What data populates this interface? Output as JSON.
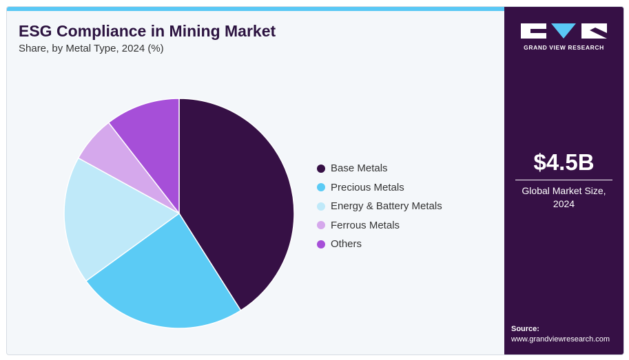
{
  "header": {
    "title": "ESG Compliance in Mining Market",
    "subtitle": "Share, by Metal Type, 2024 (%)"
  },
  "brand": {
    "name": "GRAND VIEW RESEARCH",
    "logo_icon": "gvr-logo-icon"
  },
  "stat": {
    "value": "$4.5B",
    "label": "Global Market Size, 2024"
  },
  "source": {
    "label": "Source:",
    "url": "www.grandviewresearch.com"
  },
  "colors": {
    "accent_bar": "#5ac8f5",
    "sidebar_bg": "#361045",
    "background": "#f4f7fa"
  },
  "chart_data": {
    "type": "pie",
    "title": "ESG Compliance in Mining Market",
    "subtitle": "Share, by Metal Type, 2024 (%)",
    "legend_position": "right",
    "categories": [
      "Base Metals",
      "Precious Metals",
      "Energy & Battery Metals",
      "Ferrous Metals",
      "Others"
    ],
    "values": [
      41,
      24,
      18,
      6.5,
      10.5
    ],
    "colors": [
      "#361045",
      "#5bcbf5",
      "#bfe9f9",
      "#d5a8ec",
      "#a64fd8"
    ],
    "start_angle_deg": 0,
    "direction": "clockwise"
  }
}
